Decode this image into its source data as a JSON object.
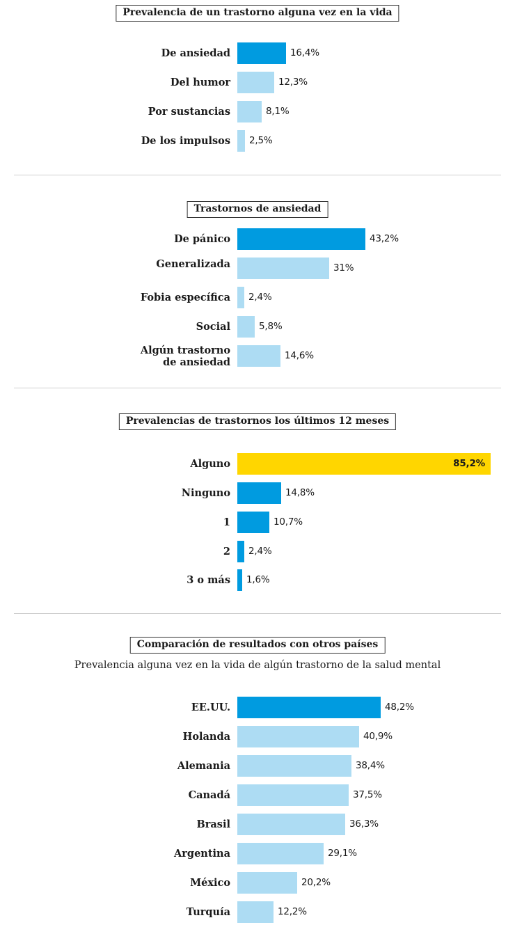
{
  "colors": {
    "dark_blue": "#009be0",
    "light_blue": "#addcf3",
    "yellow": "#ffd600"
  },
  "chart_data": [
    {
      "type": "bar",
      "orientation": "horizontal",
      "title": "Prevalencia de un trastorno alguna vez en la vida",
      "categories": [
        "De ansiedad",
        "Del humor",
        "Por sustancias",
        "De los impulsos"
      ],
      "values": [
        16.4,
        12.3,
        8.1,
        2.5
      ],
      "value_labels": [
        "16,4%",
        "12,3%",
        "8,1%",
        "2,5%"
      ],
      "bar_colors": [
        "dark_blue",
        "light_blue",
        "light_blue",
        "light_blue"
      ],
      "unit": "%",
      "grid": false
    },
    {
      "type": "bar",
      "orientation": "horizontal",
      "title": "Trastornos de ansiedad",
      "categories": [
        "De pánico",
        "Generalizada",
        "Fobia específica",
        "Social",
        "Algún trastorno\nde ansiedad"
      ],
      "values": [
        43.2,
        31,
        2.4,
        5.8,
        14.6
      ],
      "value_labels": [
        "43,2%",
        "31%",
        "2,4%",
        "5,8%",
        "14,6%"
      ],
      "bar_colors": [
        "dark_blue",
        "light_blue",
        "light_blue",
        "light_blue",
        "light_blue"
      ],
      "unit": "%",
      "grid": false
    },
    {
      "type": "bar",
      "orientation": "horizontal",
      "title": "Prevalencias de trastornos los últimos 12 meses",
      "categories": [
        "Alguno",
        "Ninguno",
        "1",
        "2",
        "3 o más"
      ],
      "values": [
        85.2,
        14.8,
        10.7,
        2.4,
        1.6
      ],
      "value_labels": [
        "85,2%",
        "14,8%",
        "10,7%",
        "2,4%",
        "1,6%"
      ],
      "bar_colors": [
        "yellow",
        "dark_blue",
        "dark_blue",
        "dark_blue",
        "dark_blue"
      ],
      "unit": "%",
      "grid": false
    },
    {
      "type": "bar",
      "orientation": "horizontal",
      "title": "Comparación de resultados con otros países",
      "subtitle": "Prevalencia alguna vez en la vida de algún trastorno de la salud mental",
      "categories": [
        "EE.UU.",
        "Holanda",
        "Alemania",
        "Canadá",
        "Brasil",
        "Argentina",
        "México",
        "Turquía"
      ],
      "values": [
        48.2,
        40.9,
        38.4,
        37.5,
        36.3,
        29.1,
        20.2,
        12.2
      ],
      "value_labels": [
        "48,2%",
        "40,9%",
        "38,4%",
        "37,5%",
        "36,3%",
        "29,1%",
        "20,2%",
        "12,2%"
      ],
      "bar_colors": [
        "dark_blue",
        "light_blue",
        "light_blue",
        "light_blue",
        "light_blue",
        "light_blue",
        "light_blue",
        "light_blue"
      ],
      "unit": "%",
      "grid": false
    }
  ]
}
